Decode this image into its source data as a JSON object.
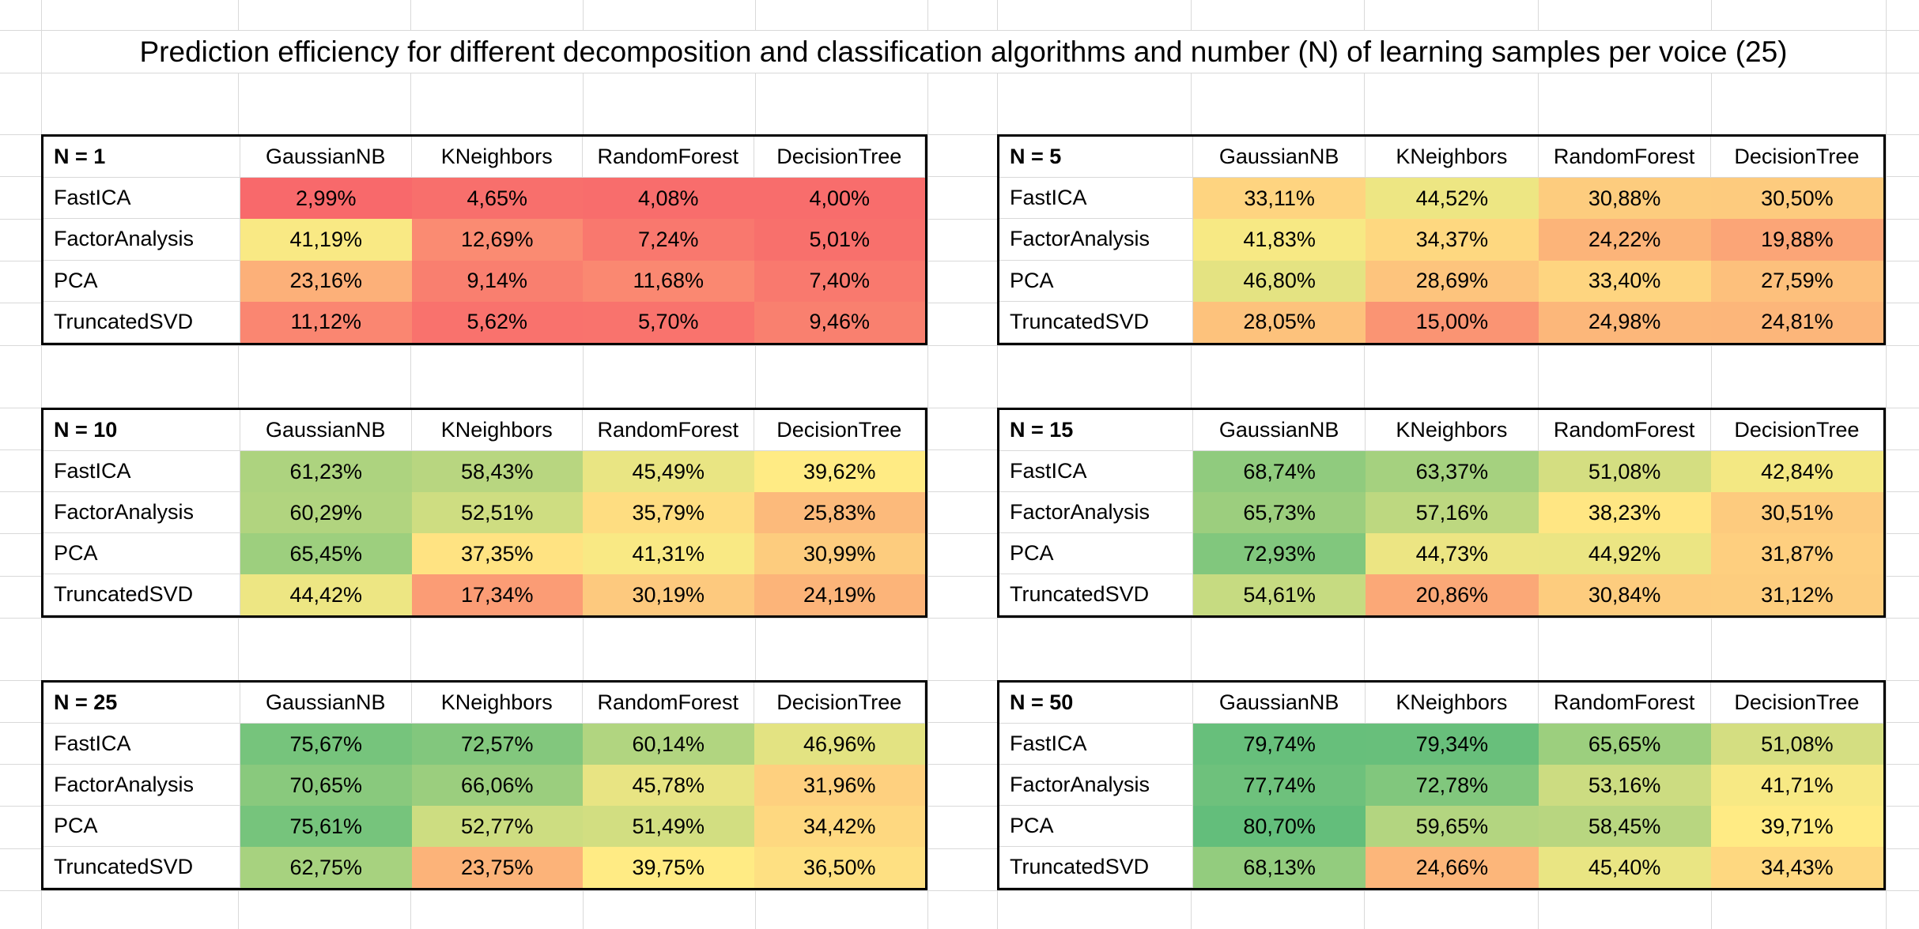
{
  "sheet_title": "Prediction efficiency for different decomposition and classification algorithms and number (N) of learning samples per voice (25)",
  "chart_data": {
    "type": "heatmap",
    "unit": "%",
    "value_format": "two decimals, comma as decimal separator, percent sign",
    "columns": [
      "GaussianNB",
      "KNeighbors",
      "RandomForest",
      "DecisionTree"
    ],
    "rows": [
      "FastICA",
      "FactorAnalysis",
      "PCA",
      "TruncatedSVD"
    ],
    "color_scale": {
      "type": "3-color-scale",
      "min_value": 2.99,
      "min_color": "#F8696B",
      "mid_value": 39.67,
      "mid_color": "#FFEB84",
      "max_value": 80.7,
      "max_color": "#63BE7B"
    },
    "tables": [
      {
        "n_label": "N = 1",
        "values": [
          [
            2.99,
            4.65,
            4.08,
            4.0
          ],
          [
            41.19,
            12.69,
            7.24,
            5.01
          ],
          [
            23.16,
            9.14,
            11.68,
            7.4
          ],
          [
            11.12,
            5.62,
            5.7,
            9.46
          ]
        ]
      },
      {
        "n_label": "N = 5",
        "values": [
          [
            33.11,
            44.52,
            30.88,
            30.5
          ],
          [
            41.83,
            34.37,
            24.22,
            19.88
          ],
          [
            46.8,
            28.69,
            33.4,
            27.59
          ],
          [
            28.05,
            15.0,
            24.98,
            24.81
          ]
        ]
      },
      {
        "n_label": "N = 10",
        "values": [
          [
            61.23,
            58.43,
            45.49,
            39.62
          ],
          [
            60.29,
            52.51,
            35.79,
            25.83
          ],
          [
            65.45,
            37.35,
            41.31,
            30.99
          ],
          [
            44.42,
            17.34,
            30.19,
            24.19
          ]
        ]
      },
      {
        "n_label": "N = 15",
        "values": [
          [
            68.74,
            63.37,
            51.08,
            42.84
          ],
          [
            65.73,
            57.16,
            38.23,
            30.51
          ],
          [
            72.93,
            44.73,
            44.92,
            31.87
          ],
          [
            54.61,
            20.86,
            30.84,
            31.12
          ]
        ]
      },
      {
        "n_label": "N = 25",
        "values": [
          [
            75.67,
            72.57,
            60.14,
            46.96
          ],
          [
            70.65,
            66.06,
            45.78,
            31.96
          ],
          [
            75.61,
            52.77,
            51.49,
            34.42
          ],
          [
            62.75,
            23.75,
            39.75,
            36.5
          ]
        ]
      },
      {
        "n_label": "N = 50",
        "values": [
          [
            79.74,
            79.34,
            65.65,
            51.08
          ],
          [
            77.74,
            72.78,
            53.16,
            41.71
          ],
          [
            80.7,
            59.65,
            58.45,
            39.71
          ],
          [
            68.13,
            24.66,
            45.4,
            34.43
          ]
        ]
      }
    ]
  }
}
